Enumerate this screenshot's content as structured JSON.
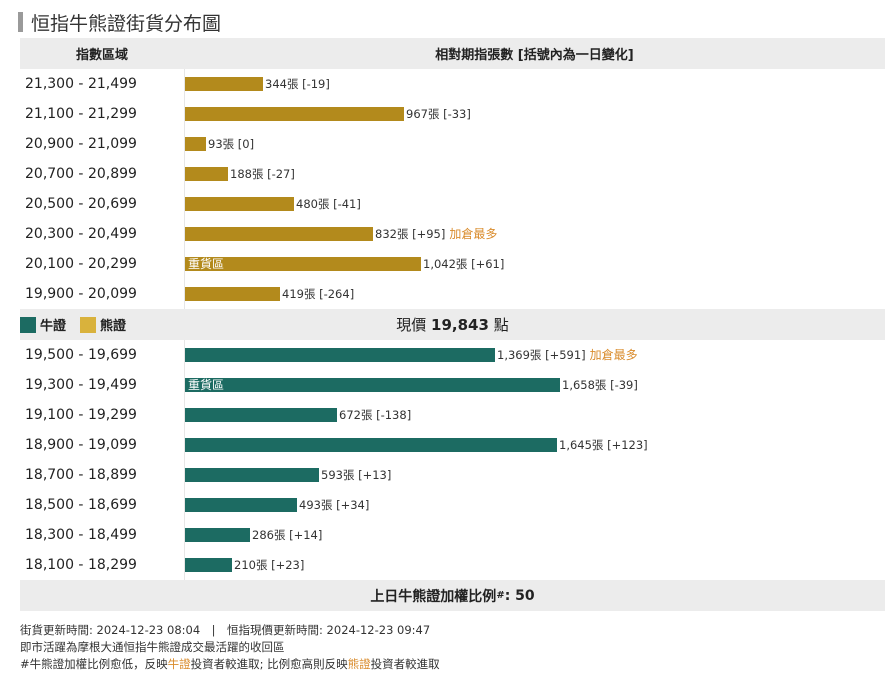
{
  "title": "恒指牛熊證街貨分布圖",
  "header": {
    "col_range": "指數區域",
    "col_value": "相對期指張數 [括號內為一日變化]"
  },
  "legend": {
    "bull": "牛證",
    "bear": "熊證"
  },
  "price": {
    "prefix": "現價",
    "value": "19,843",
    "suffix": "點"
  },
  "footer": {
    "label": "上日牛熊證加權比例",
    "mark": "#",
    "value": ": 50"
  },
  "notes": {
    "line1": "街貨更新時間: 2024-12-23 08:04　|　恒指現價更新時間: 2024-12-23 09:47",
    "line2": "即市活躍為摩根大通恒指牛熊證成交最活躍的收回區",
    "line3_a": "#牛熊證加權比例愈低，反映",
    "line3_b": "牛證",
    "line3_c": "投資者較進取; 比例愈高則反映",
    "line3_d": "熊證",
    "line3_e": "投資者較進取"
  },
  "colors": {
    "bull": "#1c6b62",
    "bear": "#b38a1c",
    "tag": "#d98b2b"
  },
  "chart_data": {
    "type": "bar",
    "orientation": "horizontal",
    "xmax": 1800,
    "bear": [
      {
        "range": "21,300 - 21,499",
        "value": 344,
        "change": "-19",
        "label": "344張 [-19]",
        "tag": "",
        "inner": ""
      },
      {
        "range": "21,100 - 21,299",
        "value": 967,
        "change": "-33",
        "label": "967張 [-33]",
        "tag": "",
        "inner": ""
      },
      {
        "range": "20,900 - 21,099",
        "value": 93,
        "change": "0",
        "label": "93張 [0]",
        "tag": "",
        "inner": ""
      },
      {
        "range": "20,700 - 20,899",
        "value": 188,
        "change": "-27",
        "label": "188張 [-27]",
        "tag": "",
        "inner": ""
      },
      {
        "range": "20,500 - 20,699",
        "value": 480,
        "change": "-41",
        "label": "480張 [-41]",
        "tag": "",
        "inner": ""
      },
      {
        "range": "20,300 - 20,499",
        "value": 832,
        "change": "+95",
        "label": "832張 [+95]",
        "tag": "加倉最多",
        "inner": ""
      },
      {
        "range": "20,100 - 20,299",
        "value": 1042,
        "change": "+61",
        "label": "1,042張 [+61]",
        "tag": "",
        "inner": "重貨區"
      },
      {
        "range": "19,900 - 20,099",
        "value": 419,
        "change": "-264",
        "label": "419張 [-264]",
        "tag": "",
        "inner": ""
      }
    ],
    "bull": [
      {
        "range": "19,500 - 19,699",
        "value": 1369,
        "change": "+591",
        "label": "1,369張 [+591]",
        "tag": "加倉最多",
        "inner": ""
      },
      {
        "range": "19,300 - 19,499",
        "value": 1658,
        "change": "-39",
        "label": "1,658張 [-39]",
        "tag": "",
        "inner": "重貨區"
      },
      {
        "range": "19,100 - 19,299",
        "value": 672,
        "change": "-138",
        "label": "672張 [-138]",
        "tag": "",
        "inner": ""
      },
      {
        "range": "18,900 - 19,099",
        "value": 1645,
        "change": "+123",
        "label": "1,645張 [+123]",
        "tag": "",
        "inner": ""
      },
      {
        "range": "18,700 - 18,899",
        "value": 593,
        "change": "+13",
        "label": "593張 [+13]",
        "tag": "",
        "inner": ""
      },
      {
        "range": "18,500 - 18,699",
        "value": 493,
        "change": "+34",
        "label": "493張 [+34]",
        "tag": "",
        "inner": ""
      },
      {
        "range": "18,300 - 18,499",
        "value": 286,
        "change": "+14",
        "label": "286張 [+14]",
        "tag": "",
        "inner": ""
      },
      {
        "range": "18,100 - 18,299",
        "value": 210,
        "change": "+23",
        "label": "210張 [+23]",
        "tag": "",
        "inner": ""
      }
    ]
  }
}
